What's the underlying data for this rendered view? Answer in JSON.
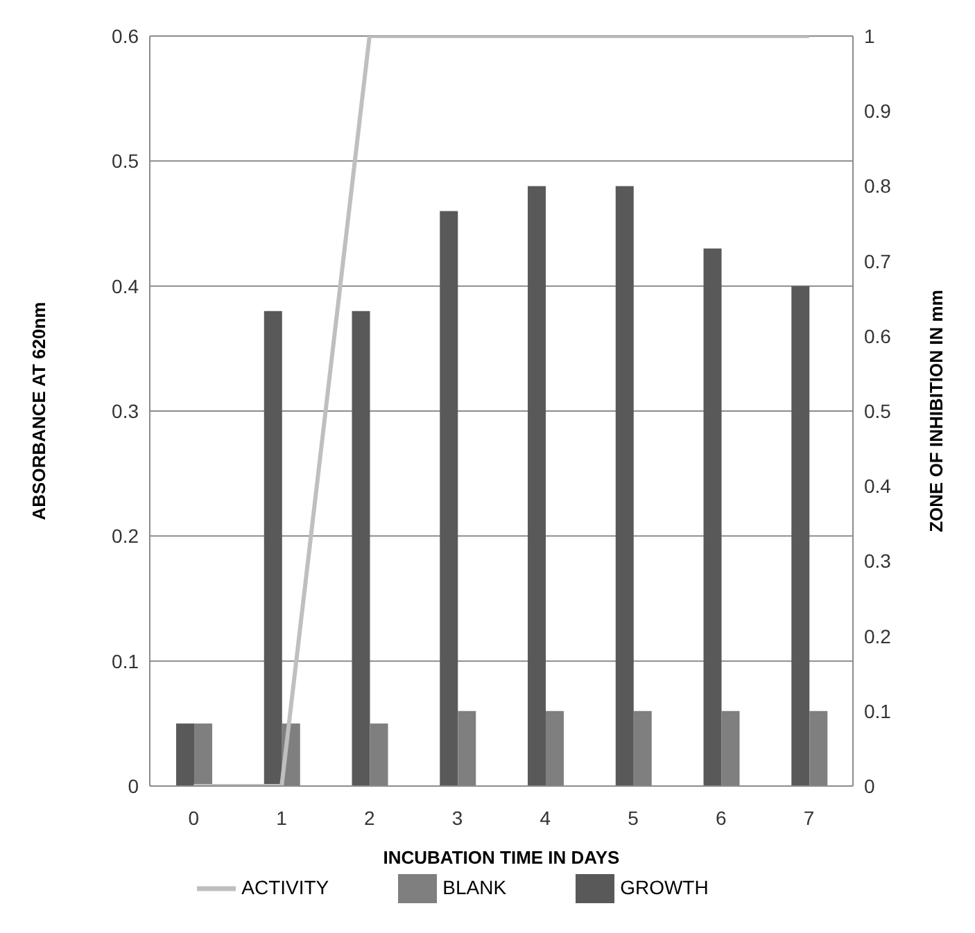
{
  "chart_data": {
    "type": "bar",
    "xlabel": "INCUBATION TIME IN DAYS",
    "ylabel": "ABSORBANCE AT 620nm",
    "y2label": "ZONE OF INHIBITION IN mm",
    "categories": [
      "0",
      "1",
      "2",
      "3",
      "4",
      "5",
      "6",
      "7"
    ],
    "series": [
      {
        "name": "GROWTH",
        "color": "#595959",
        "values": [
          0.05,
          0.38,
          0.38,
          0.46,
          0.48,
          0.48,
          0.43,
          0.4
        ]
      },
      {
        "name": "BLANK",
        "color": "#7f7f7f",
        "values": [
          0.05,
          0.05,
          0.05,
          0.06,
          0.06,
          0.06,
          0.06,
          0.06
        ]
      },
      {
        "name": "ACTIVITY",
        "type": "line",
        "axis": "y2",
        "color": "#bfbfbf",
        "values": [
          0,
          0,
          1,
          1,
          1,
          1,
          1,
          1
        ]
      }
    ],
    "ylim": [
      0,
      0.6
    ],
    "yticks": [
      0,
      0.1,
      0.2,
      0.3,
      0.4,
      0.5,
      0.6
    ],
    "y2lim": [
      0,
      1
    ],
    "y2ticks": [
      0,
      0.1,
      0.2,
      0.3,
      0.4,
      0.5,
      0.6,
      0.7,
      0.8,
      0.9,
      1
    ],
    "grid": "y",
    "legend": "bottom",
    "marker": "none"
  }
}
